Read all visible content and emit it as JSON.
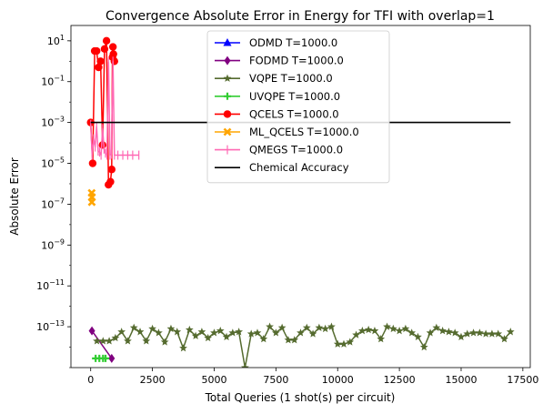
{
  "chart_data": {
    "type": "line",
    "title": "Convergence Absolute Error in Energy for TFI with overlap=1",
    "xlabel": "Total Queries (1 shot(s) per circuit)",
    "ylabel": "Absolute Error",
    "yscale": "log",
    "xlim": [
      -800,
      17800
    ],
    "ylim_exp": [
      -15,
      1.75
    ],
    "x_ticks": [
      {
        "value": 0,
        "label": "0"
      },
      {
        "value": 2500,
        "label": "2500"
      },
      {
        "value": 5000,
        "label": "5000"
      },
      {
        "value": 7500,
        "label": "7500"
      },
      {
        "value": 10000,
        "label": "10000"
      },
      {
        "value": 12500,
        "label": "12500"
      },
      {
        "value": 15000,
        "label": "15000"
      },
      {
        "value": 17500,
        "label": "17500"
      }
    ],
    "y_ticks": [
      {
        "exp": 1,
        "base": "10",
        "sup": "1"
      },
      {
        "exp": -1,
        "base": "10",
        "sup": "−1"
      },
      {
        "exp": -3,
        "base": "10",
        "sup": "−3"
      },
      {
        "exp": -5,
        "base": "10",
        "sup": "−5"
      },
      {
        "exp": -7,
        "base": "10",
        "sup": "−7"
      },
      {
        "exp": -9,
        "base": "10",
        "sup": "−9"
      },
      {
        "exp": -11,
        "base": "10",
        "sup": "−11"
      },
      {
        "exp": -13,
        "base": "10",
        "sup": "−13"
      }
    ],
    "legend_position": "top-center",
    "series": [
      {
        "name": "ODMD T=1000.0",
        "color": "#0000ff",
        "marker": "triangle",
        "x": [],
        "log10y": []
      },
      {
        "name": "FODMD T=1000.0",
        "color": "#800080",
        "marker": "diamond",
        "x": [
          50,
          850
        ],
        "log10y": [
          -13.2,
          -14.55
        ]
      },
      {
        "name": "VQPE T=1000.0",
        "color": "#556b2f",
        "marker": "star",
        "x": [
          250,
          500,
          750,
          1000,
          1250,
          1500,
          1750,
          2000,
          2250,
          2500,
          2750,
          3000,
          3250,
          3500,
          3750,
          4000,
          4250,
          4500,
          4750,
          5000,
          5250,
          5500,
          5750,
          6000,
          6250,
          6500,
          6750,
          7000,
          7250,
          7500,
          7750,
          8000,
          8250,
          8500,
          8750,
          9000,
          9250,
          9500,
          9750,
          10000,
          10250,
          10500,
          10750,
          11000,
          11250,
          11500,
          11750,
          12000,
          12250,
          12500,
          12750,
          13000,
          13250,
          13500,
          13750,
          14000,
          14250,
          14500,
          14750,
          15000,
          15250,
          15500,
          15750,
          16000,
          16250,
          16500,
          16750,
          17000
        ],
        "log10y": [
          -13.7,
          -13.7,
          -13.7,
          -13.55,
          -13.25,
          -13.7,
          -13.05,
          -13.25,
          -13.7,
          -13.1,
          -13.3,
          -13.75,
          -13.1,
          -13.25,
          -14.05,
          -13.15,
          -13.45,
          -13.25,
          -13.55,
          -13.3,
          -13.2,
          -13.5,
          -13.3,
          -13.25,
          -15.0,
          -13.35,
          -13.3,
          -13.6,
          -13.0,
          -13.3,
          -13.05,
          -13.65,
          -13.65,
          -13.3,
          -13.05,
          -13.35,
          -13.05,
          -13.1,
          -13.0,
          -13.85,
          -13.85,
          -13.75,
          -13.4,
          -13.2,
          -13.15,
          -13.2,
          -13.6,
          -13.0,
          -13.1,
          -13.2,
          -13.1,
          -13.3,
          -13.5,
          -14.0,
          -13.3,
          -13.05,
          -13.2,
          -13.25,
          -13.3,
          -13.5,
          -13.35,
          -13.3,
          -13.3,
          -13.35,
          -13.35,
          -13.35,
          -13.6,
          -13.25
        ]
      },
      {
        "name": "UVQPE T=1000.0",
        "color": "#32cd32",
        "marker": "plus",
        "x": [
          200,
          350,
          500,
          600
        ],
        "log10y": [
          -14.55,
          -14.55,
          -14.55,
          -14.55
        ]
      },
      {
        "name": "QCELS T=1000.0",
        "color": "#ff0000",
        "marker": "circle",
        "x": [
          0,
          80,
          160,
          240,
          320,
          400,
          480,
          560,
          640,
          720,
          800,
          850,
          880,
          900,
          920,
          960
        ],
        "log10y": [
          -3.0,
          -5.0,
          0.5,
          0.5,
          -0.3,
          0.0,
          -4.1,
          0.6,
          1.0,
          -6.05,
          -5.9,
          -5.3,
          0.2,
          0.7,
          0.35,
          0.0
        ]
      },
      {
        "name": "ML_QCELS T=1000.0",
        "color": "#ffa500",
        "marker": "x",
        "x": [
          40,
          50,
          45
        ],
        "log10y": [
          -6.45,
          -6.65,
          -6.9
        ]
      },
      {
        "name": "QMEGS T=1000.0",
        "color": "#ff69b4",
        "marker": "vline",
        "x": [
          0,
          60,
          120,
          180,
          240,
          300,
          360,
          420,
          480,
          540,
          600,
          660,
          720,
          780,
          840,
          900,
          960,
          1100,
          1300,
          1500,
          1700,
          1950
        ],
        "log10y": [
          -3.1,
          -4.6,
          -3.8,
          -4.2,
          -3.2,
          -4.4,
          -4.45,
          -4.6,
          -3.3,
          -4.3,
          -4.5,
          -4.6,
          -0.05,
          -4.6,
          -4.55,
          0.0,
          -4.6,
          -4.6,
          -4.6,
          -4.6,
          -4.6,
          -4.6
        ]
      },
      {
        "name": "Chemical Accuracy",
        "color": "#000000",
        "marker": "none",
        "x": [
          0,
          17000
        ],
        "log10y": [
          -3.0,
          -3.0
        ]
      }
    ]
  }
}
